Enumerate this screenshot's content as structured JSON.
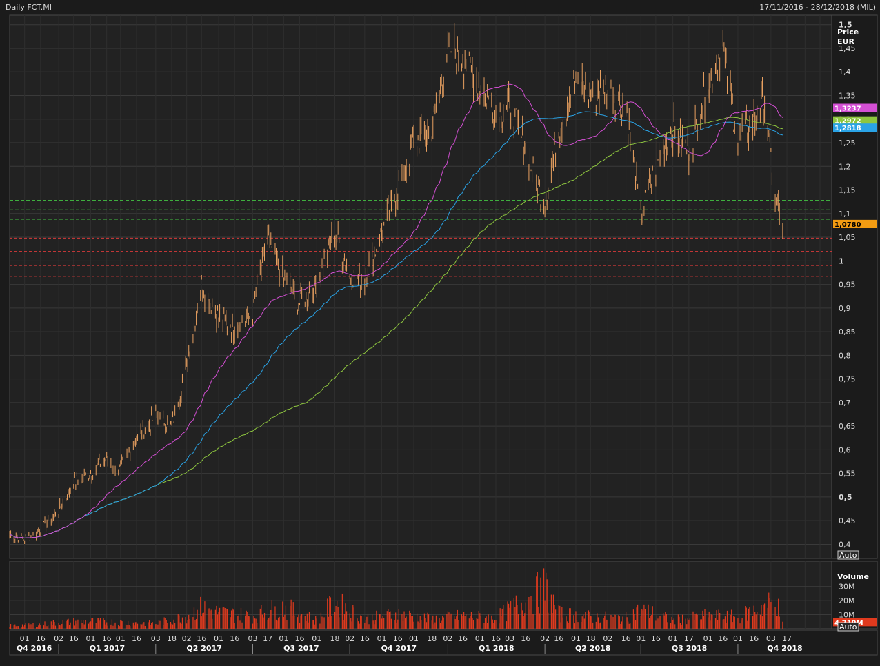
{
  "header": {
    "title": "Daily FCT.MI",
    "date_range": "17/11/2016 - 28/12/2018 (MIL)"
  },
  "colors": {
    "background": "#1b1b1b",
    "plot_bg": "#222222",
    "grid": "#3a3a3a",
    "bars": "#e8a060",
    "volume": "#e03a1e",
    "ma_short": "#d44fd4",
    "ma_mid": "#2aa3e6",
    "ma_long": "#8ec63f",
    "support": "#43c343",
    "resistance": "#d63a3a",
    "last_price": "#f39c12"
  },
  "price_axis": {
    "title_line1": "Price",
    "title_line2": "EUR",
    "auto_label": "Auto"
  },
  "volume_axis": {
    "title": "Volume",
    "auto_label": "Auto"
  },
  "chart_data": {
    "type": "line",
    "subtype": "ohlc-price-with-moving-averages-and-volume",
    "title": "Daily FCT.MI",
    "xlabel": "",
    "ylabel": "Price EUR",
    "ylim": [
      0.37,
      1.52
    ],
    "y_ticks": [
      "1,5",
      "1,45",
      "1,4",
      "1,35",
      "1,3",
      "1,25",
      "1,2",
      "1,15",
      "1,1",
      "1,05",
      "1",
      "0,95",
      "0,9",
      "0,85",
      "0,8",
      "0,75",
      "0,7",
      "0,65",
      "0,6",
      "0,55",
      "0,5",
      "0,45",
      "0,4"
    ],
    "y_tick_values": [
      1.5,
      1.45,
      1.4,
      1.35,
      1.3,
      1.25,
      1.2,
      1.15,
      1.1,
      1.05,
      1.0,
      0.95,
      0.9,
      0.85,
      0.8,
      0.75,
      0.7,
      0.65,
      0.6,
      0.55,
      0.5,
      0.45,
      0.4
    ],
    "y_ticks_bold": [
      "1,5",
      "1",
      "0,5"
    ],
    "x_ticks": [
      "01",
      "16",
      "02",
      "16",
      "01",
      "16",
      "01",
      "16",
      "03",
      "18",
      "02",
      "16",
      "01",
      "16",
      "03",
      "17",
      "01",
      "16",
      "01",
      "18",
      "02",
      "16",
      "01",
      "16",
      "01",
      "18",
      "02",
      "16",
      "01",
      "16",
      "03",
      "16",
      "02",
      "16",
      "01",
      "18",
      "02",
      "16",
      "01",
      "16",
      "01",
      "17",
      "01",
      "16",
      "01",
      "16",
      "03",
      "17"
    ],
    "quarters": [
      "Q4 2016",
      "Q1 2017",
      "Q2 2017",
      "Q3 2017",
      "Q4 2017",
      "Q1 2018",
      "Q2 2018",
      "Q3 2018",
      "Q4 2018"
    ],
    "price_series": {
      "name": "FCT.MI",
      "points": [
        [
          "2016-11-17",
          0.42
        ],
        [
          "2016-12-01",
          0.41
        ],
        [
          "2016-12-15",
          0.43
        ],
        [
          "2017-01-02",
          0.47
        ],
        [
          "2017-01-16",
          0.53
        ],
        [
          "2017-02-01",
          0.55
        ],
        [
          "2017-02-15",
          0.58
        ],
        [
          "2017-03-01",
          0.56
        ],
        [
          "2017-03-15",
          0.62
        ],
        [
          "2017-04-03",
          0.67
        ],
        [
          "2017-04-18",
          0.65
        ],
        [
          "2017-05-02",
          0.78
        ],
        [
          "2017-05-16",
          0.95
        ],
        [
          "2017-06-01",
          0.88
        ],
        [
          "2017-06-15",
          0.86
        ],
        [
          "2017-07-03",
          0.89
        ],
        [
          "2017-07-17",
          1.05
        ],
        [
          "2017-08-01",
          0.96
        ],
        [
          "2017-08-16",
          0.91
        ],
        [
          "2017-09-01",
          0.95
        ],
        [
          "2017-09-18",
          1.06
        ],
        [
          "2017-10-02",
          0.97
        ],
        [
          "2017-10-16",
          0.96
        ],
        [
          "2017-11-01",
          1.06
        ],
        [
          "2017-11-16",
          1.15
        ],
        [
          "2017-12-01",
          1.25
        ],
        [
          "2017-12-18",
          1.28
        ],
        [
          "2018-01-02",
          1.45
        ],
        [
          "2018-01-16",
          1.43
        ],
        [
          "2018-02-01",
          1.37
        ],
        [
          "2018-02-16",
          1.31
        ],
        [
          "2018-03-01",
          1.33
        ],
        [
          "2018-03-16",
          1.23
        ],
        [
          "2018-04-03",
          1.12
        ],
        [
          "2018-04-16",
          1.28
        ],
        [
          "2018-05-02",
          1.38
        ],
        [
          "2018-05-16",
          1.35
        ],
        [
          "2018-06-01",
          1.36
        ],
        [
          "2018-06-18",
          1.33
        ],
        [
          "2018-07-02",
          1.09
        ],
        [
          "2018-07-16",
          1.2
        ],
        [
          "2018-08-01",
          1.28
        ],
        [
          "2018-08-16",
          1.23
        ],
        [
          "2018-09-03",
          1.38
        ],
        [
          "2018-09-17",
          1.45
        ],
        [
          "2018-10-01",
          1.25
        ],
        [
          "2018-10-16",
          1.3
        ],
        [
          "2018-10-25",
          1.35
        ],
        [
          "2018-11-06",
          1.12
        ],
        [
          "2018-11-12",
          1.078
        ]
      ]
    },
    "moving_averages": [
      {
        "value": 1.3237,
        "label": "1,3237"
      },
      {
        "value": 1.2972,
        "label": "1,2972"
      },
      {
        "value": 1.2818,
        "label": "1,2818"
      }
    ],
    "last_price": {
      "value": 1.078,
      "label": "1,0780"
    },
    "support_levels": [
      1.15,
      1.128,
      1.108,
      1.088
    ],
    "resistance_levels": [
      1.048,
      1.02,
      0.99,
      0.967
    ],
    "volume": {
      "axis_ticks": [
        "30M",
        "20M",
        "10M"
      ],
      "axis_tick_values": [
        30,
        20,
        10
      ],
      "last": "4,719M",
      "last_value": 4.719,
      "points": [
        [
          "2016-11-17",
          3
        ],
        [
          "2016-12-15",
          4
        ],
        [
          "2017-01-02",
          6
        ],
        [
          "2017-02-01",
          7
        ],
        [
          "2017-03-01",
          6
        ],
        [
          "2017-04-03",
          5
        ],
        [
          "2017-05-02",
          12
        ],
        [
          "2017-05-16",
          20
        ],
        [
          "2017-06-01",
          15
        ],
        [
          "2017-07-03",
          12
        ],
        [
          "2017-07-17",
          17
        ],
        [
          "2017-08-01",
          20
        ],
        [
          "2017-09-01",
          8
        ],
        [
          "2017-09-18",
          25
        ],
        [
          "2017-10-16",
          9
        ],
        [
          "2017-11-16",
          14
        ],
        [
          "2017-12-18",
          9
        ],
        [
          "2018-01-16",
          12
        ],
        [
          "2018-02-16",
          10
        ],
        [
          "2018-04-03",
          38
        ],
        [
          "2018-04-16",
          14
        ],
        [
          "2018-05-16",
          11
        ],
        [
          "2018-06-18",
          10
        ],
        [
          "2018-07-02",
          18
        ],
        [
          "2018-08-01",
          8
        ],
        [
          "2018-09-03",
          12
        ],
        [
          "2018-10-01",
          11
        ],
        [
          "2018-11-06",
          26
        ],
        [
          "2018-11-12",
          4.7
        ]
      ]
    },
    "grid": true,
    "legend": "none"
  }
}
